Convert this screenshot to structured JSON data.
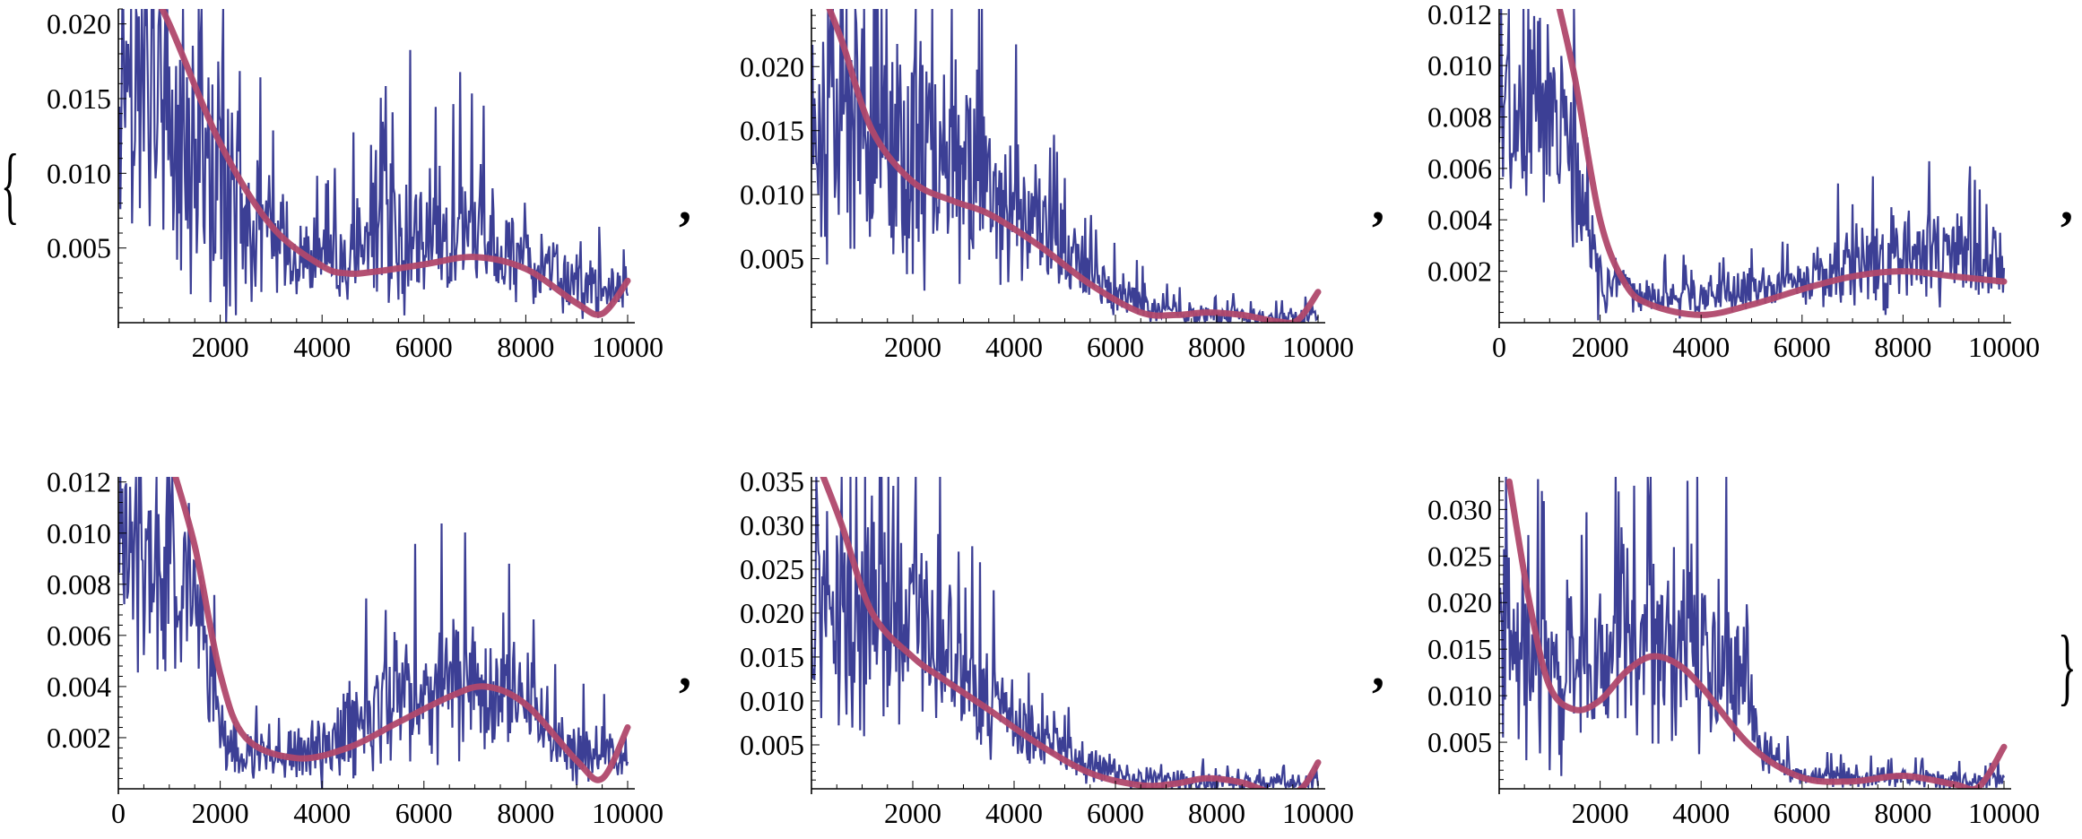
{
  "colors": {
    "noisy": "#3c3f95",
    "fit": "#b0486c",
    "axis": "#000000"
  },
  "list_delimiters": {
    "open": "{",
    "close": "}",
    "separator": ","
  },
  "chart_data": [
    {
      "type": "line",
      "series": [
        {
          "style": "noisy",
          "anchors": [
            [
              0,
              0.018
            ],
            [
              600,
              0.016
            ],
            [
              1200,
              0.012
            ],
            [
              1800,
              0.009
            ],
            [
              2500,
              0.007
            ],
            [
              3500,
              0.0045
            ],
            [
              4500,
              0.004
            ],
            [
              5000,
              0.005
            ],
            [
              5500,
              0.006
            ],
            [
              6000,
              0.006
            ],
            [
              7000,
              0.006
            ],
            [
              7500,
              0.0055
            ],
            [
              8000,
              0.004
            ],
            [
              9000,
              0.0025
            ],
            [
              10000,
              0.002
            ]
          ],
          "amplitude": [
            [
              0,
              0.011
            ],
            [
              2000,
              0.009
            ],
            [
              3000,
              0.004
            ],
            [
              4000,
              0.0025
            ],
            [
              5500,
              0.006
            ],
            [
              7000,
              0.005
            ],
            [
              8000,
              0.003
            ],
            [
              10000,
              0.0018
            ]
          ]
        },
        {
          "style": "fit",
          "anchors": [
            [
              400,
              0.024
            ],
            [
              1000,
              0.02
            ],
            [
              2000,
              0.012
            ],
            [
              3000,
              0.0065
            ],
            [
              4000,
              0.0038
            ],
            [
              4500,
              0.0033
            ],
            [
              5000,
              0.0034
            ],
            [
              6000,
              0.0039
            ],
            [
              7000,
              0.0044
            ],
            [
              8000,
              0.0036
            ],
            [
              9000,
              0.0013
            ],
            [
              9500,
              0.0006
            ],
            [
              10000,
              0.0028
            ]
          ]
        }
      ],
      "xlim": [
        0,
        10000
      ],
      "ylim": [
        0.0,
        0.021
      ],
      "x_ticks": [
        2000,
        4000,
        6000,
        8000,
        10000
      ],
      "x_tick_labels": [
        "2000",
        "4000",
        "6000",
        "8000",
        "10000"
      ],
      "y_ticks": [
        0.005,
        0.01,
        0.015,
        0.02
      ],
      "y_tick_labels": [
        "0.005",
        "0.010",
        "0.015",
        "0.020"
      ],
      "grid": false
    },
    {
      "type": "line",
      "series": [
        {
          "style": "noisy",
          "anchors": [
            [
              0,
              0.016
            ],
            [
              800,
              0.015
            ],
            [
              1600,
              0.014
            ],
            [
              2400,
              0.013
            ],
            [
              3200,
              0.012
            ],
            [
              4000,
              0.009
            ],
            [
              4800,
              0.006
            ],
            [
              5600,
              0.0035
            ],
            [
              6400,
              0.0015
            ],
            [
              7200,
              0.0008
            ],
            [
              8000,
              0.0006
            ],
            [
              9000,
              0.0004
            ],
            [
              10000,
              0.0006
            ]
          ],
          "amplitude": [
            [
              0,
              0.011
            ],
            [
              1500,
              0.012
            ],
            [
              3000,
              0.01
            ],
            [
              4000,
              0.006
            ],
            [
              5000,
              0.004
            ],
            [
              6000,
              0.002
            ],
            [
              7000,
              0.001
            ],
            [
              10000,
              0.0008
            ]
          ]
        },
        {
          "style": "fit",
          "anchors": [
            [
              200,
              0.026
            ],
            [
              600,
              0.022
            ],
            [
              1200,
              0.015
            ],
            [
              2000,
              0.011
            ],
            [
              2800,
              0.0095
            ],
            [
              3500,
              0.0085
            ],
            [
              4500,
              0.006
            ],
            [
              5500,
              0.003
            ],
            [
              6500,
              0.0008
            ],
            [
              7200,
              0.0006
            ],
            [
              7800,
              0.0008
            ],
            [
              8500,
              0.0006
            ],
            [
              9200,
              0.0001
            ],
            [
              9600,
              0.0002
            ],
            [
              10000,
              0.0024
            ]
          ]
        }
      ],
      "xlim": [
        0,
        10000
      ],
      "ylim": [
        0.0,
        0.0245
      ],
      "x_ticks": [
        2000,
        4000,
        6000,
        8000,
        10000
      ],
      "x_tick_labels": [
        "2000",
        "4000",
        "6000",
        "8000",
        "10000"
      ],
      "y_ticks": [
        0.005,
        0.01,
        0.015,
        0.02
      ],
      "y_tick_labels": [
        "0.005",
        "0.010",
        "0.015",
        "0.020"
      ],
      "grid": false
    },
    {
      "type": "line",
      "series": [
        {
          "style": "noisy",
          "anchors": [
            [
              0,
              0.008
            ],
            [
              600,
              0.0082
            ],
            [
              1200,
              0.0078
            ],
            [
              1500,
              0.006
            ],
            [
              1800,
              0.0025
            ],
            [
              2200,
              0.0013
            ],
            [
              3000,
              0.001
            ],
            [
              4000,
              0.001
            ],
            [
              5000,
              0.0012
            ],
            [
              6000,
              0.0015
            ],
            [
              7000,
              0.0022
            ],
            [
              8000,
              0.0026
            ],
            [
              9000,
              0.0025
            ],
            [
              10000,
              0.0018
            ]
          ],
          "amplitude": [
            [
              0,
              0.004
            ],
            [
              1400,
              0.004
            ],
            [
              1800,
              0.0025
            ],
            [
              2500,
              0.0008
            ],
            [
              6000,
              0.001
            ],
            [
              7500,
              0.0022
            ],
            [
              9000,
              0.002
            ],
            [
              10000,
              0.0012
            ]
          ]
        },
        {
          "style": "fit",
          "anchors": [
            [
              1100,
              0.013
            ],
            [
              1500,
              0.0095
            ],
            [
              2000,
              0.004
            ],
            [
              2500,
              0.0015
            ],
            [
              3000,
              0.0007
            ],
            [
              4000,
              0.0003
            ],
            [
              5000,
              0.0007
            ],
            [
              6000,
              0.0013
            ],
            [
              7000,
              0.0018
            ],
            [
              8000,
              0.002
            ],
            [
              9000,
              0.0018
            ],
            [
              10000,
              0.0016
            ]
          ]
        }
      ],
      "xlim": [
        0,
        10000
      ],
      "ylim": [
        0.0,
        0.0122
      ],
      "x_ticks": [
        0,
        2000,
        4000,
        6000,
        8000,
        10000
      ],
      "x_tick_labels": [
        "0",
        "2000",
        "4000",
        "6000",
        "8000",
        "10000"
      ],
      "y_ticks": [
        0.002,
        0.004,
        0.006,
        0.008,
        0.01,
        0.012
      ],
      "y_tick_labels": [
        "0.002",
        "0.004",
        "0.006",
        "0.008",
        "0.010",
        "0.012"
      ],
      "grid": false
    },
    {
      "type": "line",
      "series": [
        {
          "style": "noisy",
          "anchors": [
            [
              0,
              0.0095
            ],
            [
              800,
              0.009
            ],
            [
              1400,
              0.008
            ],
            [
              1800,
              0.004
            ],
            [
              2200,
              0.0015
            ],
            [
              3000,
              0.0012
            ],
            [
              4000,
              0.0015
            ],
            [
              5000,
              0.003
            ],
            [
              6000,
              0.004
            ],
            [
              7000,
              0.0045
            ],
            [
              8000,
              0.0035
            ],
            [
              9000,
              0.0015
            ],
            [
              10000,
              0.0012
            ]
          ],
          "amplitude": [
            [
              0,
              0.005
            ],
            [
              1500,
              0.004
            ],
            [
              2000,
              0.002
            ],
            [
              3000,
              0.0007
            ],
            [
              5000,
              0.0025
            ],
            [
              6500,
              0.0035
            ],
            [
              8000,
              0.002
            ],
            [
              10000,
              0.0008
            ]
          ]
        },
        {
          "style": "fit",
          "anchors": [
            [
              1000,
              0.013
            ],
            [
              1500,
              0.0095
            ],
            [
              2000,
              0.0045
            ],
            [
              2500,
              0.002
            ],
            [
              3500,
              0.0012
            ],
            [
              4500,
              0.0016
            ],
            [
              5500,
              0.0026
            ],
            [
              6500,
              0.0036
            ],
            [
              7200,
              0.004
            ],
            [
              8000,
              0.0033
            ],
            [
              9000,
              0.0011
            ],
            [
              9500,
              0.0004
            ],
            [
              10000,
              0.0024
            ]
          ]
        }
      ],
      "xlim": [
        0,
        10000
      ],
      "ylim": [
        0.0,
        0.0122
      ],
      "x_ticks": [
        0,
        2000,
        4000,
        6000,
        8000,
        10000
      ],
      "x_tick_labels": [
        "0",
        "2000",
        "4000",
        "6000",
        "8000",
        "10000"
      ],
      "y_ticks": [
        0.002,
        0.004,
        0.006,
        0.008,
        0.01,
        0.012
      ],
      "y_tick_labels": [
        "0.002",
        "0.004",
        "0.006",
        "0.008",
        "0.010",
        "0.012"
      ],
      "grid": false
    },
    {
      "type": "line",
      "series": [
        {
          "style": "noisy",
          "anchors": [
            [
              0,
              0.02
            ],
            [
              800,
              0.019
            ],
            [
              1500,
              0.022
            ],
            [
              2200,
              0.02
            ],
            [
              3000,
              0.014
            ],
            [
              3800,
              0.008
            ],
            [
              4500,
              0.005
            ],
            [
              5200,
              0.0035
            ],
            [
              6000,
              0.0015
            ],
            [
              7000,
              0.0008
            ],
            [
              8000,
              0.0008
            ],
            [
              9000,
              0.0006
            ],
            [
              10000,
              0.0008
            ]
          ],
          "amplitude": [
            [
              0,
              0.013
            ],
            [
              1500,
              0.015
            ],
            [
              2500,
              0.012
            ],
            [
              4000,
              0.005
            ],
            [
              5000,
              0.003
            ],
            [
              6000,
              0.0015
            ],
            [
              10000,
              0.001
            ]
          ]
        },
        {
          "style": "fit",
          "anchors": [
            [
              200,
              0.036
            ],
            [
              600,
              0.03
            ],
            [
              1200,
              0.02
            ],
            [
              2000,
              0.015
            ],
            [
              2600,
              0.0125
            ],
            [
              3500,
              0.009
            ],
            [
              4500,
              0.005
            ],
            [
              5500,
              0.0018
            ],
            [
              6500,
              0.0004
            ],
            [
              7200,
              0.0006
            ],
            [
              7800,
              0.0012
            ],
            [
              8500,
              0.0007
            ],
            [
              9300,
              -0.0008
            ],
            [
              9700,
              0.0002
            ],
            [
              10000,
              0.003
            ]
          ]
        }
      ],
      "xlim": [
        0,
        10000
      ],
      "ylim": [
        0.0,
        0.0355
      ],
      "x_ticks": [
        2000,
        4000,
        6000,
        8000,
        10000
      ],
      "x_tick_labels": [
        "2000",
        "4000",
        "6000",
        "8000",
        "10000"
      ],
      "y_ticks": [
        0.005,
        0.01,
        0.015,
        0.02,
        0.025,
        0.03,
        0.035
      ],
      "y_tick_labels": [
        "0.005",
        "0.010",
        "0.015",
        "0.020",
        "0.025",
        "0.030",
        "0.035"
      ],
      "grid": false
    },
    {
      "type": "line",
      "series": [
        {
          "style": "noisy",
          "anchors": [
            [
              0,
              0.018
            ],
            [
              600,
              0.015
            ],
            [
              1200,
              0.012
            ],
            [
              1800,
              0.013
            ],
            [
              2500,
              0.016
            ],
            [
              3000,
              0.018
            ],
            [
              3600,
              0.016
            ],
            [
              4200,
              0.014
            ],
            [
              4800,
              0.012
            ],
            [
              5200,
              0.004
            ],
            [
              6000,
              0.0015
            ],
            [
              7000,
              0.0012
            ],
            [
              8000,
              0.0012
            ],
            [
              9000,
              0.0008
            ],
            [
              10000,
              0.001
            ]
          ],
          "amplitude": [
            [
              0,
              0.014
            ],
            [
              1500,
              0.01
            ],
            [
              3000,
              0.014
            ],
            [
              4500,
              0.01
            ],
            [
              5200,
              0.003
            ],
            [
              6000,
              0.0012
            ],
            [
              10000,
              0.001
            ]
          ]
        },
        {
          "style": "fit",
          "anchors": [
            [
              200,
              0.033
            ],
            [
              600,
              0.02
            ],
            [
              1000,
              0.011
            ],
            [
              1500,
              0.0085
            ],
            [
              2000,
              0.0095
            ],
            [
              2500,
              0.0125
            ],
            [
              3000,
              0.0142
            ],
            [
              3500,
              0.0135
            ],
            [
              4000,
              0.011
            ],
            [
              5000,
              0.0045
            ],
            [
              6000,
              0.0012
            ],
            [
              7000,
              0.0008
            ],
            [
              8000,
              0.0014
            ],
            [
              9000,
              0.0005
            ],
            [
              9500,
              0.0002
            ],
            [
              10000,
              0.0045
            ]
          ]
        }
      ],
      "xlim": [
        0,
        10000
      ],
      "ylim": [
        0.0,
        0.0335
      ],
      "x_ticks": [
        2000,
        4000,
        6000,
        8000,
        10000
      ],
      "x_tick_labels": [
        "2000",
        "4000",
        "6000",
        "8000",
        "10000"
      ],
      "y_ticks": [
        0.005,
        0.01,
        0.015,
        0.02,
        0.025,
        0.03
      ],
      "y_tick_labels": [
        "0.005",
        "0.010",
        "0.015",
        "0.020",
        "0.025",
        "0.030"
      ],
      "grid": false
    }
  ]
}
